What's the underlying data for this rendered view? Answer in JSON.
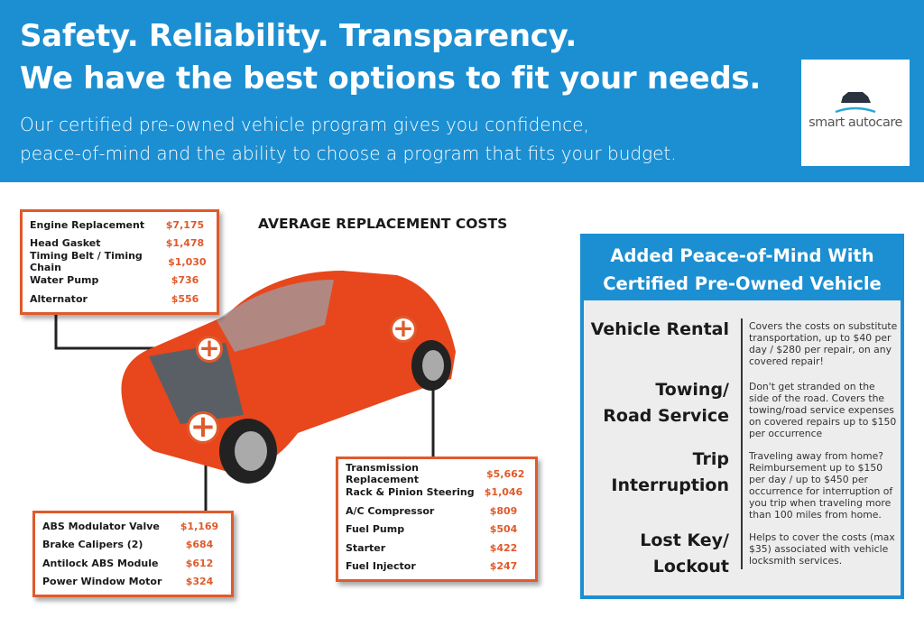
{
  "header": {
    "title_line1": "Safety. Reliability. Transparency.",
    "title_line2": "We have the best options to fit your needs.",
    "subtitle_line1": "Our certified pre-owned vehicle program gives you confidence,",
    "subtitle_line2": "peace-of-mind and the ability to choose a program that fits your budget."
  },
  "logo": {
    "text": "smart autocare",
    "brand": "smartautocare"
  },
  "colors": {
    "header_blue": "#1c8fd2",
    "accent_orange": "#e05a2b",
    "car_orange": "#e8461c"
  },
  "section_title": "AVERAGE REPLACEMENT COSTS",
  "engine_costs": [
    {
      "part": "Engine Replacement",
      "price": "$7,175"
    },
    {
      "part": "Head Gasket",
      "price": "$1,478"
    },
    {
      "part": "Timing Belt / Timing Chain",
      "price": "$1,030"
    },
    {
      "part": "Water Pump",
      "price": "$736"
    },
    {
      "part": "Alternator",
      "price": "$556"
    }
  ],
  "drivetrain_costs": [
    {
      "part": "Transmission Replacement",
      "price": "$5,662"
    },
    {
      "part": "Rack & Pinion Steering",
      "price": "$1,046"
    },
    {
      "part": "A/C Compressor",
      "price": "$809"
    },
    {
      "part": "Fuel Pump",
      "price": "$504"
    },
    {
      "part": "Starter",
      "price": "$422"
    },
    {
      "part": "Fuel Injector",
      "price": "$247"
    }
  ],
  "brake_costs": [
    {
      "part": "ABS Modulator Valve",
      "price": "$1,169"
    },
    {
      "part": "Brake Calipers (2)",
      "price": "$684"
    },
    {
      "part": "Antilock ABS Module",
      "price": "$612"
    },
    {
      "part": "Power Window Motor",
      "price": "$324"
    }
  ],
  "panel": {
    "title_line1": "Added Peace-of-Mind With",
    "title_line2": "Certified Pre-Owned Vehicle",
    "benefits": [
      {
        "label_line1": "Vehicle Rental",
        "label_line2": "",
        "desc": "Covers the costs on substitute transportation, up to $40 per day / $280 per repair, on any covered repair!"
      },
      {
        "label_line1": "Towing/",
        "label_line2": "Road Service",
        "desc": "Don't get stranded on the side of the road. Covers the towing/road service expenses on covered repairs up to $150 per occurrence"
      },
      {
        "label_line1": "Trip",
        "label_line2": "Interruption",
        "desc": "Traveling away from home? Reimbursement up to $150 per day / up to $450 per occurrence for interruption of you trip when traveling more than 100 miles from home."
      },
      {
        "label_line1": "Lost Key/",
        "label_line2": "Lockout",
        "desc": "Helps to cover the costs (max $35) associated with vehicle locksmith services."
      }
    ]
  }
}
